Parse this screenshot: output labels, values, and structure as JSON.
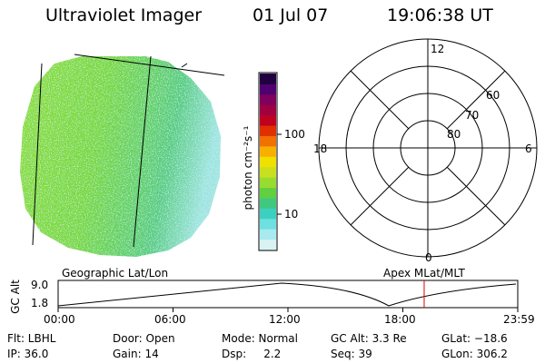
{
  "header": {
    "title": "Ultraviolet Imager",
    "date": "01 Jul 07",
    "time": "19:06:38 UT"
  },
  "colorbar": {
    "unit": "photon cm⁻²s⁻¹",
    "tick_labels": [
      "100",
      "10"
    ],
    "colors": [
      "#d9f2f2",
      "#a8eaf0",
      "#6ee0e0",
      "#3cd0c0",
      "#40c880",
      "#60d040",
      "#98dc30",
      "#c8e020",
      "#f0e000",
      "#f8b000",
      "#f07000",
      "#e03000",
      "#c00020",
      "#a00040",
      "#800060",
      "#500070",
      "#200040"
    ]
  },
  "map_labels": {
    "left": "Geographic Lat/Lon",
    "right": "Apex MLat/MLT"
  },
  "polar": {
    "mlt_labels": {
      "top": "12",
      "bottom": "0",
      "left": "18",
      "right": "6"
    },
    "lat_labels": [
      "60",
      "70",
      "80"
    ]
  },
  "altitude_plot": {
    "y_axis_label": "GC Alt",
    "y_max_label": "9.0",
    "y_min_label": "1.8",
    "x_tick_labels": [
      "00:00",
      "06:00",
      "12:00",
      "18:00",
      "23:59"
    ],
    "current_time_fraction": 0.7964
  },
  "info_row1": [
    "Flt: LBHL",
    "Door: Open",
    "Mode: Normal",
    "GC Alt: 3.3 Re",
    "GLat: −18.6"
  ],
  "info_row2": [
    "IP: 36.0",
    "Gain: 14",
    "Dsp:     2.2",
    "Seq: 39",
    "GLon: 306.2"
  ]
}
